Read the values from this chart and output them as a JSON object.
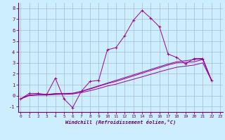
{
  "bg_color": "#cceeff",
  "grid_color": "#aabbcc",
  "line_color": "#990099",
  "spine_color": "#660066",
  "tick_color": "#660066",
  "xlim_min": 0,
  "xlim_max": 23,
  "ylim_min": -1.5,
  "ylim_max": 8.5,
  "xticks": [
    0,
    1,
    2,
    3,
    4,
    5,
    6,
    7,
    8,
    9,
    10,
    11,
    12,
    13,
    14,
    15,
    16,
    17,
    18,
    19,
    20,
    21,
    22,
    23
  ],
  "yticks": [
    -1,
    0,
    1,
    2,
    3,
    4,
    5,
    6,
    7,
    8
  ],
  "xlabel": "Windchill (Refroidissement éolien,°C)",
  "series_main": [
    -0.3,
    0.2,
    0.2,
    0.1,
    1.6,
    -0.3,
    -1.1,
    0.4,
    1.3,
    1.4,
    4.2,
    4.4,
    5.5,
    6.9,
    7.8,
    7.1,
    6.3,
    3.8,
    3.5,
    2.9,
    3.4,
    3.4,
    1.4
  ],
  "series_trend1": [
    -0.3,
    0.05,
    0.1,
    0.1,
    0.2,
    0.2,
    0.2,
    0.4,
    0.65,
    0.9,
    1.15,
    1.4,
    1.65,
    1.9,
    2.15,
    2.4,
    2.65,
    2.9,
    3.1,
    3.2,
    3.3,
    3.35,
    1.4
  ],
  "series_trend2": [
    -0.3,
    0.05,
    0.1,
    0.1,
    0.15,
    0.2,
    0.22,
    0.38,
    0.6,
    0.85,
    1.1,
    1.3,
    1.55,
    1.8,
    2.05,
    2.3,
    2.55,
    2.8,
    3.0,
    3.05,
    3.1,
    3.3,
    1.4
  ],
  "series_trend3": [
    -0.3,
    0.0,
    0.05,
    0.05,
    0.1,
    0.12,
    0.15,
    0.28,
    0.45,
    0.65,
    0.88,
    1.05,
    1.28,
    1.5,
    1.72,
    1.95,
    2.18,
    2.4,
    2.6,
    2.7,
    2.8,
    3.0,
    1.4
  ]
}
